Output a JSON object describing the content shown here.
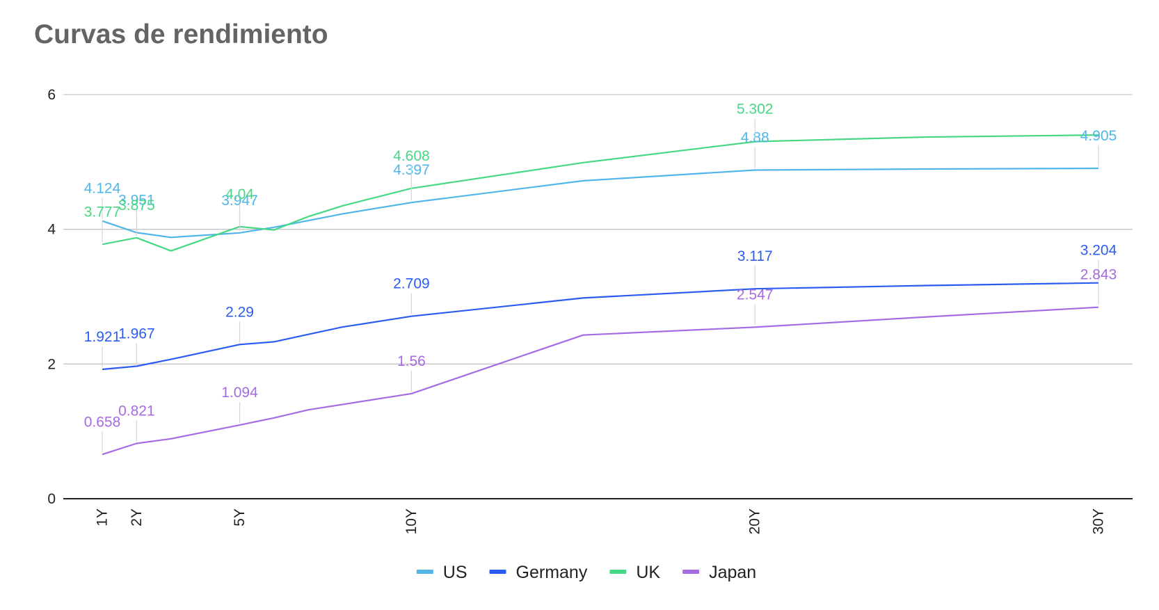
{
  "chart_data": {
    "type": "line",
    "title": "Curvas de rendimiento",
    "xlabel": "",
    "ylabel": "",
    "ylim": [
      0,
      6
    ],
    "yticks": [
      0,
      2,
      4,
      6
    ],
    "grid": true,
    "legend_position": "bottom",
    "x": [
      1,
      2,
      3,
      5,
      6,
      7,
      8,
      10,
      15,
      20,
      25,
      30
    ],
    "x_tick_labels": [
      {
        "x": 1,
        "label": "1Y"
      },
      {
        "x": 2,
        "label": "2Y"
      },
      {
        "x": 5,
        "label": "5Y"
      },
      {
        "x": 10,
        "label": "10Y"
      },
      {
        "x": 20,
        "label": "20Y"
      },
      {
        "x": 30,
        "label": "30Y"
      }
    ],
    "series": [
      {
        "name": "US",
        "color": "#4fb6e7",
        "values": [
          4.124,
          3.951,
          3.88,
          3.947,
          4.03,
          4.13,
          4.23,
          4.397,
          4.72,
          4.88,
          4.895,
          4.905
        ],
        "labels": [
          {
            "x": 1,
            "text": "4.124"
          },
          {
            "x": 2,
            "text": "3.951"
          },
          {
            "x": 5,
            "text": "3.947"
          },
          {
            "x": 10,
            "text": "4.397"
          },
          {
            "x": 20,
            "text": "4.88"
          },
          {
            "x": 30,
            "text": "4.905"
          }
        ]
      },
      {
        "name": "Germany",
        "color": "#2b5cf2",
        "values": [
          1.921,
          1.967,
          2.07,
          2.29,
          2.33,
          2.44,
          2.55,
          2.709,
          2.98,
          3.117,
          3.165,
          3.204
        ],
        "labels": [
          {
            "x": 1,
            "text": "1.921"
          },
          {
            "x": 2,
            "text": "1.967"
          },
          {
            "x": 5,
            "text": "2.29"
          },
          {
            "x": 10,
            "text": "2.709"
          },
          {
            "x": 20,
            "text": "3.117"
          },
          {
            "x": 30,
            "text": "3.204"
          }
        ]
      },
      {
        "name": "UK",
        "color": "#46d884",
        "values": [
          3.777,
          3.875,
          3.68,
          4.04,
          3.99,
          4.19,
          4.35,
          4.608,
          4.99,
          5.302,
          5.37,
          5.4
        ],
        "labels": [
          {
            "x": 1,
            "text": "3.777"
          },
          {
            "x": 2,
            "text": "3.875"
          },
          {
            "x": 5,
            "text": "4.04"
          },
          {
            "x": 10,
            "text": "4.608"
          },
          {
            "x": 20,
            "text": "5.302"
          }
        ]
      },
      {
        "name": "Japan",
        "color": "#a56be2",
        "values": [
          0.658,
          0.821,
          0.89,
          1.094,
          1.2,
          1.32,
          1.4,
          1.56,
          2.43,
          2.547,
          2.7,
          2.843
        ],
        "labels": [
          {
            "x": 1,
            "text": "0.658"
          },
          {
            "x": 2,
            "text": "0.821"
          },
          {
            "x": 5,
            "text": "1.094"
          },
          {
            "x": 10,
            "text": "1.56"
          },
          {
            "x": 20,
            "text": "2.547"
          },
          {
            "x": 30,
            "text": "2.843"
          }
        ]
      }
    ]
  },
  "colors": {
    "title": "#646464",
    "axis": "#222222",
    "grid": "#c6c6c6",
    "tick_text": "#222222",
    "legend_text": "#222222"
  }
}
